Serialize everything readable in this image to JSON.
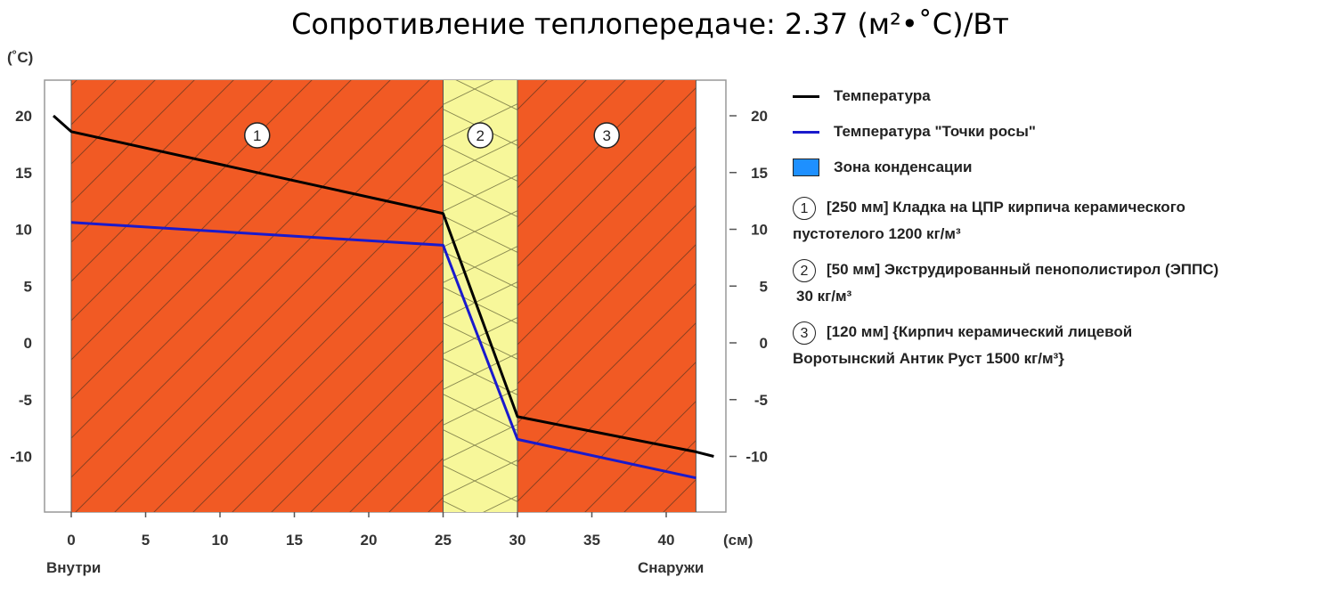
{
  "title": "Сопротивление теплопередаче: 2.37 (м²•˚C)/Вт",
  "chart_data": {
    "type": "line",
    "ylabel": "(˚C)",
    "xlabel": "(см)",
    "x_left_label": "Внутри",
    "x_right_label": "Снаружи",
    "xlim": [
      -2,
      44
    ],
    "ylim": [
      -15,
      23
    ],
    "x_ticks": [
      0,
      5,
      10,
      15,
      20,
      25,
      30,
      35,
      40
    ],
    "y_ticks": [
      20,
      15,
      10,
      5,
      0,
      -5,
      -10
    ],
    "layers": [
      {
        "num": "1",
        "from": 0,
        "to": 25,
        "color": "#f15a24"
      },
      {
        "num": "2",
        "from": 25,
        "to": 30,
        "color": "#f7f79a"
      },
      {
        "num": "3",
        "from": 30,
        "to": 42,
        "color": "#f15a24"
      }
    ],
    "series": [
      {
        "name": "Температура",
        "color": "#000000",
        "x": [
          -1.2,
          0,
          25,
          30,
          42,
          43.2
        ],
        "y": [
          20,
          18.6,
          11.4,
          -6.5,
          -9.6,
          -10
        ]
      },
      {
        "name": "Температура \"Точки росы\"",
        "color": "#1a1acc",
        "x": [
          0,
          25,
          30,
          42
        ],
        "y": [
          10.6,
          8.6,
          -8.5,
          -11.9
        ]
      }
    ]
  },
  "legend": {
    "temperature": "Температура",
    "dew_point": "Температура \"Точки росы\"",
    "condensation_zone": "Зона конденсации",
    "condensation_color": "#1e90ff",
    "layer_items": [
      {
        "num": "1",
        "text_line1": "[250 мм] Кладка на ЦПР кирпича керамического",
        "text_line2": "пустотелого 1200 кг/м³"
      },
      {
        "num": "2",
        "text_line1": "[50 мм] Экструдированный пенополистирол (ЭППС)",
        "text_line2": "30 кг/м³"
      },
      {
        "num": "3",
        "text_line1": "[120 мм] {Кирпич керамический лицевой",
        "text_line2": "Воротынский Антик Руст 1500 кг/м³}"
      }
    ]
  }
}
